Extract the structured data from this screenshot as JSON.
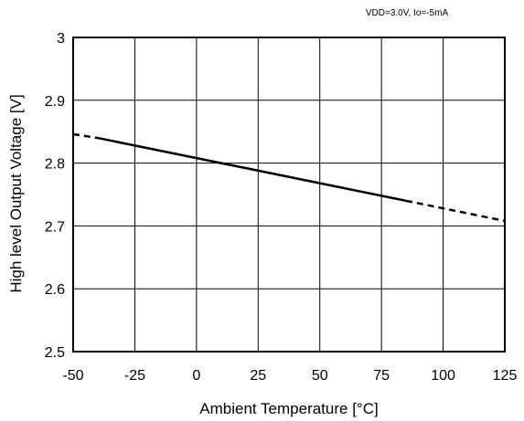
{
  "chart_data": {
    "type": "line",
    "title": "",
    "annotation": "VDD=3.0V, Io=-5mA",
    "xlabel": "Ambient Temperature [°C]",
    "ylabel": "High level Output Voltage [V]",
    "xlim": [
      -50,
      125
    ],
    "ylim": [
      2.5,
      3.0
    ],
    "x_ticks": [
      -50,
      -25,
      0,
      25,
      50,
      75,
      100,
      125
    ],
    "x_tick_labels": [
      "-50",
      "-25",
      "0",
      "25",
      "50",
      "75",
      "100",
      "125"
    ],
    "y_ticks": [
      2.5,
      2.6,
      2.7,
      2.8,
      2.9,
      3.0
    ],
    "y_tick_labels": [
      "2.5",
      "2.6",
      "2.7",
      "2.8",
      "2.9",
      "3"
    ],
    "grid": true,
    "legend": "none",
    "series": [
      {
        "style": "solid",
        "color": "#000000",
        "x": [
          -40,
          85
        ],
        "y": [
          2.84,
          2.74
        ]
      },
      {
        "style": "dashed",
        "color": "#000000",
        "x": [
          -50,
          -40
        ],
        "y": [
          2.846,
          2.84
        ]
      },
      {
        "style": "dashed",
        "color": "#000000",
        "x": [
          85,
          125
        ],
        "y": [
          2.74,
          2.708
        ]
      }
    ]
  }
}
